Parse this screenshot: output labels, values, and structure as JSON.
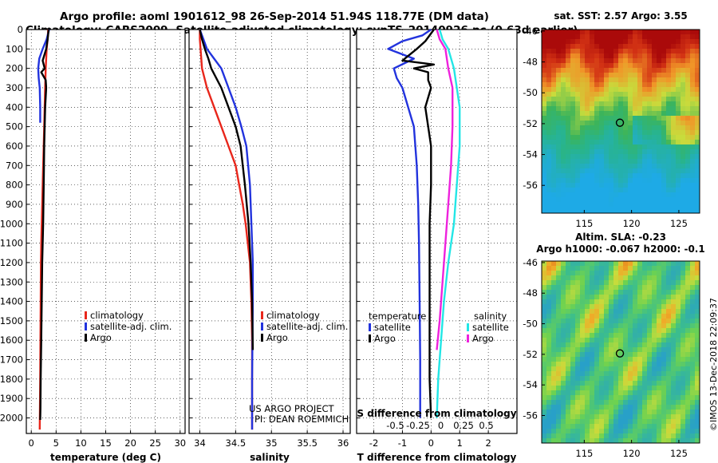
{
  "header": {
    "line1": "Argo profile: aoml 1901612_98 26-Sep-2014 51.94S 118.77E (DM data)",
    "line2": "Climatology: CARS2009. Satellite-adjusted climatology: synTS_20140926.nc (0.63d earlier)"
  },
  "credit": {
    "line1": "US ARGO PROJECT",
    "line2": "PI: DEAN ROEMMICH"
  },
  "watermark": "©IMOS 13-Dec-2018 22:09:37",
  "colors": {
    "climatology": "#e8261b",
    "satellite": "#2233dd",
    "argo": "#000000",
    "cyan": "#22e6e6",
    "magenta": "#ee22dd"
  },
  "chart_data": [
    {
      "type": "line",
      "xlabel": "temperature (deg C)",
      "ylabel": "",
      "xlim": [
        -1,
        31
      ],
      "ylim": [
        2080,
        0
      ],
      "xticks": [
        0,
        5,
        10,
        15,
        20,
        25,
        30
      ],
      "yticks": [
        0,
        100,
        200,
        300,
        400,
        500,
        600,
        700,
        800,
        900,
        1000,
        1100,
        1200,
        1300,
        1400,
        1500,
        1600,
        1700,
        1800,
        1900,
        2000
      ],
      "grid": true,
      "legend_position": "lower-right",
      "series": [
        {
          "name": "climatology",
          "color": "#e8261b",
          "x": [
            3.4,
            3.3,
            3.1,
            2.9,
            2.8,
            2.7,
            2.6,
            2.5,
            2.4,
            2.3,
            2.2,
            2.1,
            2.0,
            1.95,
            1.9,
            1.85,
            1.8,
            1.7
          ],
          "y": [
            0,
            50,
            100,
            200,
            300,
            400,
            500,
            600,
            700,
            800,
            900,
            1000,
            1100,
            1200,
            1400,
            1600,
            1800,
            2060
          ]
        },
        {
          "name": "satellite-adj. clim.",
          "color": "#2233dd",
          "x": [
            3.6,
            3.1,
            2.3,
            1.6,
            1.4,
            1.5,
            1.7,
            1.8,
            1.8
          ],
          "y": [
            0,
            50,
            100,
            150,
            200,
            250,
            300,
            400,
            480
          ]
        },
        {
          "name": "Argo",
          "color": "#000000",
          "x": [
            3.5,
            3.3,
            3.0,
            2.3,
            2.7,
            2.0,
            2.9,
            3.0,
            2.8,
            2.6,
            2.5,
            2.4,
            2.2,
            2.1,
            2.0,
            1.9,
            1.85,
            1.8
          ],
          "y": [
            0,
            50,
            100,
            160,
            200,
            220,
            260,
            300,
            400,
            600,
            800,
            1000,
            1200,
            1400,
            1600,
            1800,
            1950,
            2010
          ]
        }
      ]
    },
    {
      "type": "line",
      "xlabel": "salinity",
      "ylabel": "",
      "xlim": [
        33.85,
        36.1
      ],
      "ylim": [
        2080,
        0
      ],
      "xticks": [
        34,
        34.5,
        35,
        35.5,
        36
      ],
      "yticks": [
        0,
        100,
        200,
        300,
        400,
        500,
        600,
        700,
        800,
        900,
        1000,
        1100,
        1200,
        1300,
        1400,
        1500,
        1600,
        1700,
        1800,
        1900,
        2000
      ],
      "grid": true,
      "legend_position": "lower-right",
      "series": [
        {
          "name": "climatology",
          "color": "#e8261b",
          "x": [
            34.0,
            34.0,
            34.01,
            34.03,
            34.1,
            34.2,
            34.3,
            34.4,
            34.5,
            34.55,
            34.6,
            34.64,
            34.67,
            34.7,
            34.72,
            34.73,
            34.73,
            34.73
          ],
          "y": [
            0,
            50,
            100,
            200,
            300,
            400,
            500,
            600,
            700,
            800,
            900,
            1000,
            1100,
            1200,
            1400,
            1600,
            1800,
            2060
          ]
        },
        {
          "name": "satellite-adj. clim.",
          "color": "#2233dd",
          "x": [
            34.0,
            34.05,
            34.1,
            34.2,
            34.3,
            34.4,
            34.5,
            34.58,
            34.65,
            34.7,
            34.72,
            34.73,
            34.74,
            34.74,
            34.73,
            34.73
          ],
          "y": [
            0,
            50,
            100,
            150,
            200,
            300,
            400,
            500,
            600,
            800,
            1000,
            1100,
            1200,
            1400,
            1800,
            2060
          ]
        },
        {
          "name": "Argo",
          "color": "#000000",
          "x": [
            34.0,
            34.03,
            34.07,
            34.12,
            34.16,
            34.3,
            34.4,
            34.5,
            34.57,
            34.63,
            34.68,
            34.71,
            34.73,
            34.74
          ],
          "y": [
            0,
            50,
            100,
            150,
            200,
            300,
            400,
            500,
            600,
            800,
            1000,
            1200,
            1400,
            1650
          ]
        }
      ]
    },
    {
      "type": "line",
      "xlabel": "T difference from climatology",
      "xlabel_top": "S difference from climatology",
      "ylabel": "",
      "xlim": [
        -2.6,
        3.0
      ],
      "ylim": [
        2080,
        0
      ],
      "xticks": [
        -2,
        -1,
        0,
        1,
        2
      ],
      "xticks_top": [
        -0.5,
        -0.25,
        0,
        0.25,
        0.5
      ],
      "yticks": [
        0,
        100,
        200,
        300,
        400,
        500,
        600,
        700,
        800,
        900,
        1000,
        1100,
        1200,
        1300,
        1400,
        1500,
        1600,
        1700,
        1800,
        1900,
        2000
      ],
      "grid": true,
      "legend_groups": [
        {
          "title": "temperature",
          "entries": [
            {
              "name": "satellite",
              "color": "#2233dd"
            },
            {
              "name": "Argo",
              "color": "#000000"
            }
          ]
        },
        {
          "title": "salinity",
          "entries": [
            {
              "name": "satellite",
              "color": "#22e6e6"
            },
            {
              "name": "Argo",
              "color": "#ee22dd"
            }
          ]
        }
      ],
      "series": [
        {
          "name": "temperature satellite",
          "color": "#2233dd",
          "x": [
            0.0,
            -0.3,
            -1.0,
            -1.5,
            -0.6,
            -1.3,
            -1.2,
            -1.0,
            -0.8,
            -0.6,
            -0.5,
            -0.45,
            -0.42,
            -0.4,
            -0.38,
            -0.38
          ],
          "y": [
            0,
            30,
            60,
            100,
            150,
            200,
            250,
            300,
            400,
            500,
            700,
            900,
            1100,
            1400,
            1700,
            2000
          ]
        },
        {
          "name": "temperature Argo",
          "color": "#000000",
          "x": [
            0.1,
            -0.2,
            -0.5,
            -1.0,
            0.1,
            -0.6,
            -0.1,
            -0.1,
            0.0,
            -0.2,
            -0.1,
            0.0,
            0.0,
            -0.05,
            -0.05,
            -0.05,
            -0.05,
            0.0
          ],
          "y": [
            0,
            60,
            100,
            160,
            180,
            200,
            220,
            260,
            300,
            400,
            500,
            600,
            800,
            1000,
            1200,
            1500,
            1800,
            2000
          ]
        },
        {
          "name": "salinity satellite",
          "color": "#22e6e6",
          "x": [
            0.3,
            0.4,
            0.6,
            0.8,
            0.9,
            1.0,
            1.0,
            0.9,
            0.8,
            0.6,
            0.45,
            0.35,
            0.25,
            0.2
          ],
          "y": [
            0,
            50,
            100,
            200,
            300,
            400,
            600,
            800,
            1000,
            1200,
            1400,
            1600,
            1800,
            2000
          ]
        },
        {
          "name": "salinity Argo",
          "color": "#ee22dd",
          "x": [
            0.2,
            0.3,
            0.5,
            0.6,
            0.75,
            0.75,
            0.7,
            0.6,
            0.5,
            0.4,
            0.3,
            0.2
          ],
          "y": [
            0,
            50,
            100,
            200,
            300,
            500,
            700,
            900,
            1100,
            1300,
            1500,
            1650
          ]
        }
      ]
    },
    {
      "type": "heatmap",
      "title": "sat. SST: 2.57 Argo: 3.55",
      "xticks": [
        115,
        120,
        125
      ],
      "yticks": [
        -46,
        -48,
        -50,
        -52,
        -54,
        -56
      ],
      "xlim": [
        110.5,
        127.2
      ],
      "ylim": [
        -57.8,
        -45.9
      ],
      "marker": {
        "lon": 118.77,
        "lat": -51.94
      }
    },
    {
      "type": "heatmap",
      "title": "Altim. SLA: -0.23",
      "subtitle": "Argo h1000: -0.067 h2000: -0.1",
      "xticks": [
        115,
        120,
        125
      ],
      "yticks": [
        -46,
        -48,
        -50,
        -52,
        -54,
        -56
      ],
      "xlim": [
        110.5,
        127.2
      ],
      "ylim": [
        -57.8,
        -45.9
      ],
      "marker": {
        "lon": 118.77,
        "lat": -51.94
      }
    }
  ]
}
